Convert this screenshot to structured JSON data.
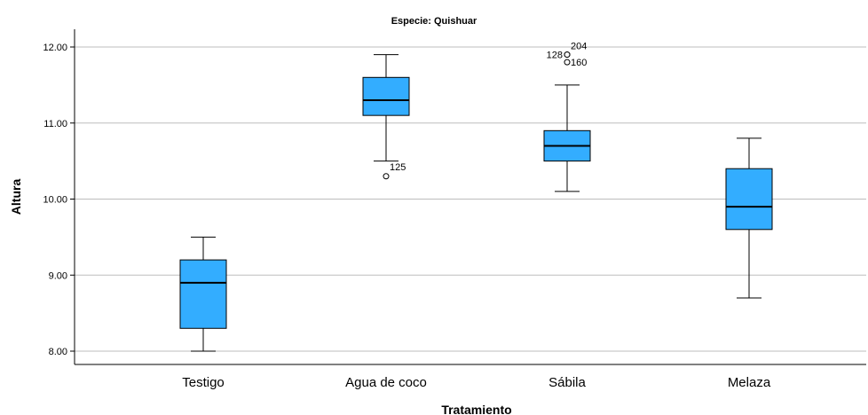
{
  "chart_data": {
    "type": "boxplot",
    "title": "Especie: Quishuar",
    "xlabel": "Tratamiento",
    "ylabel": "Altura",
    "ylim": [
      7.8,
      12.4
    ],
    "yticks": [
      8.0,
      9.0,
      10.0,
      11.0,
      12.0
    ],
    "ytick_labels": [
      "8.00",
      "9.00",
      "10.00",
      "11.00",
      "12.00"
    ],
    "grid": true,
    "box_color": "#33adff",
    "categories": [
      "Testigo",
      "Agua de coco",
      "Sábila",
      "Melaza"
    ],
    "boxes": [
      {
        "category": "Testigo",
        "whisker_low": 8.0,
        "q1": 8.3,
        "median": 8.9,
        "q3": 9.2,
        "whisker_high": 9.5,
        "outliers": []
      },
      {
        "category": "Agua de coco",
        "whisker_low": 10.5,
        "q1": 11.1,
        "median": 11.3,
        "q3": 11.6,
        "whisker_high": 11.9,
        "outliers": [
          {
            "value": 10.3,
            "label": "125"
          }
        ]
      },
      {
        "category": "Sábila",
        "whisker_low": 10.1,
        "q1": 10.5,
        "median": 10.7,
        "q3": 10.9,
        "whisker_high": 11.5,
        "outliers": [
          {
            "value": 11.9,
            "label": "128"
          },
          {
            "value": 11.9,
            "label": "204"
          },
          {
            "value": 11.8,
            "label": "160"
          }
        ]
      },
      {
        "category": "Melaza",
        "whisker_low": 8.7,
        "q1": 9.6,
        "median": 9.9,
        "q3": 10.4,
        "whisker_high": 10.8,
        "outliers": []
      }
    ]
  }
}
